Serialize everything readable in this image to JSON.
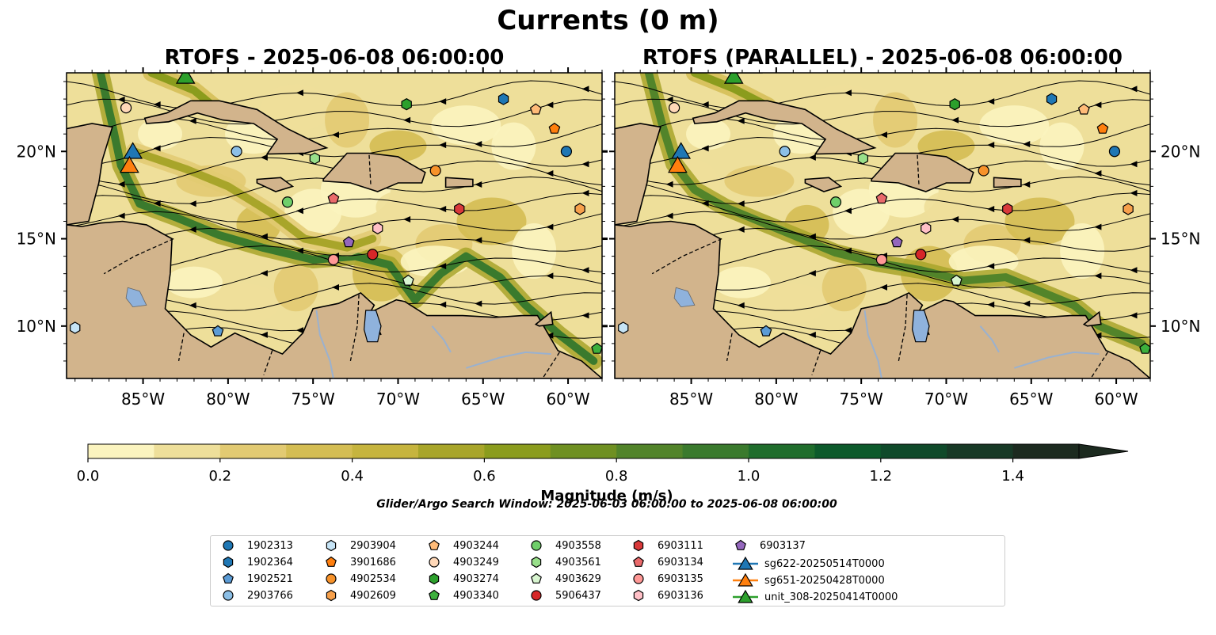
{
  "figure": {
    "suptitle": "Currents (0 m)",
    "panel_left_title": "RTOFS - 2025-06-08 06:00:00",
    "panel_right_title": "RTOFS (PARALLEL) - 2025-06-08 06:00:00",
    "colorbar_label": "Magnitude (m/s)",
    "search_window": "Glider/Argo Search Window: 2025-06-03 06:00:00 to 2025-06-08 06:00:00"
  },
  "chart_data": {
    "type": "map",
    "extent": {
      "lon": [
        -89.5,
        -58
      ],
      "lat": [
        7,
        24.5
      ]
    },
    "lon_ticks": [
      {
        "value": -85,
        "label": "85°W"
      },
      {
        "value": -80,
        "label": "80°W"
      },
      {
        "value": -75,
        "label": "75°W"
      },
      {
        "value": -70,
        "label": "70°W"
      },
      {
        "value": -65,
        "label": "65°W"
      },
      {
        "value": -60,
        "label": "60°W"
      }
    ],
    "lat_ticks": [
      {
        "value": 10,
        "label": "10°N"
      },
      {
        "value": 15,
        "label": "15°N"
      },
      {
        "value": 20,
        "label": "20°N"
      }
    ],
    "colorbar": {
      "min": 0,
      "max": 1.5,
      "step": 0.1,
      "extend": "max",
      "ticks": [
        {
          "value": 0,
          "label": "0.0"
        },
        {
          "value": 0.2,
          "label": "0.2"
        },
        {
          "value": 0.4,
          "label": "0.4"
        },
        {
          "value": 0.6,
          "label": "0.6"
        },
        {
          "value": 0.8,
          "label": "0.8"
        },
        {
          "value": 1.0,
          "label": "1.0"
        },
        {
          "value": 1.2,
          "label": "1.2"
        },
        {
          "value": 1.4,
          "label": "1.4"
        }
      ],
      "colors": [
        "#fbf4bf",
        "#eedf9a",
        "#e2ca72",
        "#d4bd53",
        "#c6b43e",
        "#a8a52a",
        "#8b9c1d",
        "#6f9022",
        "#52842a",
        "#3a7a2d",
        "#1f6d2c",
        "#0d5a2b",
        "#0f4a2a",
        "#173926",
        "#1c2a1f"
      ]
    },
    "land_color": "#d2b48c",
    "lake_color": "#8fb2dc",
    "argo_floats": [
      {
        "id": "1902313",
        "marker": "circle",
        "color": "#1f77b4",
        "lon": -60.1,
        "lat": 20.0
      },
      {
        "id": "1902364",
        "marker": "hexagon",
        "color": "#1f77b4",
        "lon": -63.8,
        "lat": 23.0
      },
      {
        "id": "1902521",
        "marker": "pentagon",
        "color": "#5b9bd5",
        "lon": -80.6,
        "lat": 9.7
      },
      {
        "id": "2903766",
        "marker": "circle",
        "color": "#8cbfe6",
        "lon": -79.5,
        "lat": 20.0
      },
      {
        "id": "2903904",
        "marker": "hexagon",
        "color": "#c6e4f6",
        "lon": -89.0,
        "lat": 9.9
      },
      {
        "id": "3901686",
        "marker": "pentagon",
        "color": "#ff7f0e",
        "lon": -60.8,
        "lat": 21.3
      },
      {
        "id": "4902534",
        "marker": "circle",
        "color": "#f7922a",
        "lon": -67.8,
        "lat": 18.9
      },
      {
        "id": "4902609",
        "marker": "hexagon",
        "color": "#f7a04b",
        "lon": -59.3,
        "lat": 16.7
      },
      {
        "id": "4903244",
        "marker": "pentagon",
        "color": "#ffbb78",
        "lon": -61.9,
        "lat": 22.4
      },
      {
        "id": "4903249",
        "marker": "circle",
        "color": "#ffd8b8",
        "lon": -86.0,
        "lat": 22.5
      },
      {
        "id": "4903274",
        "marker": "hexagon",
        "color": "#2ca02c",
        "lon": -69.5,
        "lat": 22.7
      },
      {
        "id": "4903340",
        "marker": "pentagon",
        "color": "#3db03d",
        "lon": -58.3,
        "lat": 8.7
      },
      {
        "id": "4903558",
        "marker": "circle",
        "color": "#6fcf6a",
        "lon": -76.5,
        "lat": 17.1
      },
      {
        "id": "4903561",
        "marker": "hexagon",
        "color": "#98df8a",
        "lon": -74.9,
        "lat": 19.6
      },
      {
        "id": "4903629",
        "marker": "pentagon",
        "color": "#d8f5d0",
        "lon": -69.4,
        "lat": 12.6
      },
      {
        "id": "5906437",
        "marker": "circle",
        "color": "#d62728",
        "lon": -71.5,
        "lat": 14.1
      },
      {
        "id": "6903111",
        "marker": "hexagon",
        "color": "#d9393a",
        "lon": -66.4,
        "lat": 16.7
      },
      {
        "id": "6903134",
        "marker": "pentagon",
        "color": "#ea6a6b",
        "lon": -73.8,
        "lat": 17.3
      },
      {
        "id": "6903135",
        "marker": "circle",
        "color": "#ff9896",
        "lon": -73.8,
        "lat": 13.8
      },
      {
        "id": "6903136",
        "marker": "hexagon",
        "color": "#ffc0c7",
        "lon": -71.2,
        "lat": 15.6
      },
      {
        "id": "6903137",
        "marker": "pentagon",
        "color": "#9467bd",
        "lon": -72.9,
        "lat": 14.8
      }
    ],
    "gliders": [
      {
        "id": "sg622-20250514T0000",
        "marker": "triangle",
        "color": "#1f77b4",
        "lon": -85.6,
        "lat": 19.9
      },
      {
        "id": "sg651-20250428T0000",
        "marker": "triangle",
        "color": "#ff7f0e",
        "lon": -85.8,
        "lat": 19.1
      },
      {
        "id": "unit_308-20250414T0000",
        "marker": "triangle",
        "color": "#2ca02c",
        "lon": -82.5,
        "lat": 24.2
      }
    ],
    "features": {
      "left": [
        {
          "path": [
            [
              -87.5,
              24.5
            ],
            [
              -86.8,
              21.5
            ],
            [
              -86.3,
              19.2
            ],
            [
              -85.2,
              17.0
            ],
            [
              -83.0,
              16.2
            ],
            [
              -80.5,
              15.2
            ],
            [
              -78,
              14.5
            ],
            [
              -75,
              13.8
            ],
            [
              -72.5,
              14.0
            ],
            [
              -70.5,
              13.5
            ],
            [
              -69.0,
              11.5
            ],
            [
              -67.5,
              13.0
            ],
            [
              -66,
              14.0
            ],
            [
              -64,
              12.8
            ],
            [
              -62.5,
              11.2
            ],
            [
              -60.5,
              9.5
            ],
            [
              -58.5,
              8.0
            ]
          ],
          "speed": 0.9
        },
        {
          "path": [
            [
              -85.5,
              20.0
            ],
            [
              -82.5,
              19.0
            ],
            [
              -80,
              18.0
            ],
            [
              -77.5,
              16.5
            ],
            [
              -75.5,
              15.0
            ],
            [
              -73,
              14.5
            ],
            [
              -71.5,
              15.0
            ]
          ],
          "speed": 0.55
        },
        {
          "path": [
            [
              -89.5,
              12.0
            ],
            [
              -88,
              10.8
            ],
            [
              -86.5,
              10.0
            ],
            [
              -85.5,
              9.0
            ]
          ],
          "speed": 1.0
        },
        {
          "path": [
            [
              -84.5,
              24.5
            ],
            [
              -82,
              23.5
            ],
            [
              -80.5,
              22.3
            ]
          ],
          "speed": 0.7
        }
      ],
      "right": [
        {
          "path": [
            [
              -87.5,
              24.5
            ],
            [
              -86.7,
              21.5
            ],
            [
              -86.0,
              19.3
            ],
            [
              -84.8,
              17.8
            ],
            [
              -83.0,
              16.8
            ],
            [
              -81,
              16.0
            ],
            [
              -79,
              15.2
            ],
            [
              -76.5,
              14.2
            ],
            [
              -74,
              13.6
            ],
            [
              -71.5,
              13.2
            ],
            [
              -69,
              12.6
            ],
            [
              -66.5,
              12.8
            ],
            [
              -64.5,
              12.0
            ],
            [
              -62.5,
              11.2
            ],
            [
              -61,
              10.0
            ],
            [
              -58.5,
              9.0
            ]
          ],
          "speed": 0.85
        },
        {
          "path": [
            [
              -89.5,
              11.8
            ],
            [
              -88,
              10.8
            ],
            [
              -86.8,
              9.8
            ]
          ],
          "speed": 0.95
        },
        {
          "path": [
            [
              -84.8,
              24.5
            ],
            [
              -82.5,
              23.6
            ],
            [
              -80.5,
              22.6
            ]
          ],
          "speed": 0.7
        }
      ]
    }
  }
}
